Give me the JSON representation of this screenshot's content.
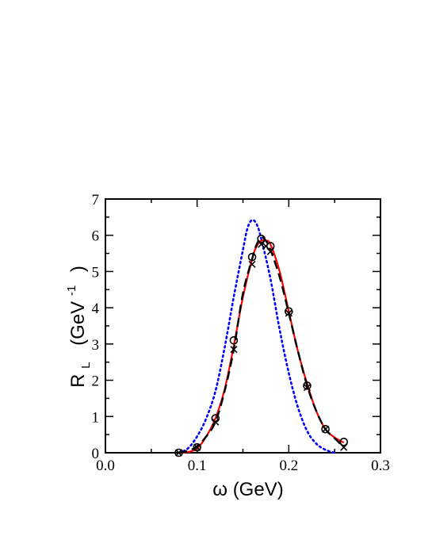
{
  "chart_data": {
    "type": "line",
    "title": "",
    "xlabel": "ω   (GeV)",
    "ylabel": {
      "main": "R",
      "subscript": "L",
      "unit_open": "(GeV",
      "unit_power": "-1",
      "unit_close": ")"
    },
    "xlim": [
      0.0,
      0.3
    ],
    "ylim": [
      0,
      7
    ],
    "x_ticks": [
      "0.0",
      "0.1",
      "0.2",
      "0.3"
    ],
    "y_ticks": [
      "0",
      "1",
      "2",
      "3",
      "4",
      "5",
      "6",
      "7"
    ],
    "grid": false,
    "legend": "none",
    "series": [
      {
        "style": "solid",
        "color": "#ff0000",
        "x": [
          0.08,
          0.09,
          0.1,
          0.11,
          0.12,
          0.13,
          0.14,
          0.15,
          0.16,
          0.165,
          0.17,
          0.175,
          0.18,
          0.19,
          0.2,
          0.21,
          0.22,
          0.23,
          0.24,
          0.25,
          0.26
        ],
        "y": [
          0.0,
          0.02,
          0.12,
          0.45,
          0.95,
          1.75,
          2.95,
          4.3,
          5.35,
          5.7,
          5.85,
          5.85,
          5.75,
          5.0,
          3.9,
          2.8,
          1.9,
          1.15,
          0.65,
          0.42,
          0.28
        ]
      },
      {
        "style": "dashed",
        "color": "#000000",
        "x": [
          0.08,
          0.09,
          0.1,
          0.11,
          0.12,
          0.13,
          0.14,
          0.15,
          0.16,
          0.165,
          0.17,
          0.175,
          0.18,
          0.19,
          0.2,
          0.21,
          0.22,
          0.23,
          0.24,
          0.25,
          0.26
        ],
        "y": [
          0.0,
          0.05,
          0.18,
          0.45,
          0.85,
          1.7,
          2.85,
          4.4,
          5.35,
          5.75,
          5.95,
          5.85,
          5.6,
          4.85,
          3.85,
          2.8,
          1.85,
          1.15,
          0.65,
          0.4,
          0.15
        ]
      },
      {
        "style": "dotted",
        "color": "#0000ff",
        "x": [
          0.08,
          0.09,
          0.1,
          0.11,
          0.12,
          0.13,
          0.14,
          0.15,
          0.155,
          0.16,
          0.165,
          0.17,
          0.18,
          0.19,
          0.2,
          0.21,
          0.22,
          0.23,
          0.24,
          0.25
        ],
        "y": [
          0.0,
          0.12,
          0.45,
          0.95,
          1.7,
          2.9,
          4.3,
          5.6,
          6.2,
          6.42,
          6.3,
          5.9,
          4.8,
          3.4,
          2.2,
          1.25,
          0.6,
          0.25,
          0.08,
          0.0
        ]
      },
      {
        "style": "circle-markers",
        "color": "#000000",
        "x": [
          0.08,
          0.1,
          0.12,
          0.14,
          0.16,
          0.17,
          0.18,
          0.2,
          0.22,
          0.24,
          0.26
        ],
        "y": [
          0.0,
          0.15,
          0.95,
          3.1,
          5.4,
          5.9,
          5.7,
          3.9,
          1.85,
          0.65,
          0.3
        ]
      },
      {
        "style": "x-markers",
        "color": "#000000",
        "x": [
          0.08,
          0.1,
          0.12,
          0.14,
          0.16,
          0.17,
          0.175,
          0.18,
          0.2,
          0.22,
          0.24,
          0.26
        ],
        "y": [
          0.0,
          0.15,
          0.85,
          2.85,
          5.2,
          5.75,
          5.7,
          5.55,
          3.85,
          1.8,
          0.65,
          0.15
        ]
      }
    ]
  }
}
